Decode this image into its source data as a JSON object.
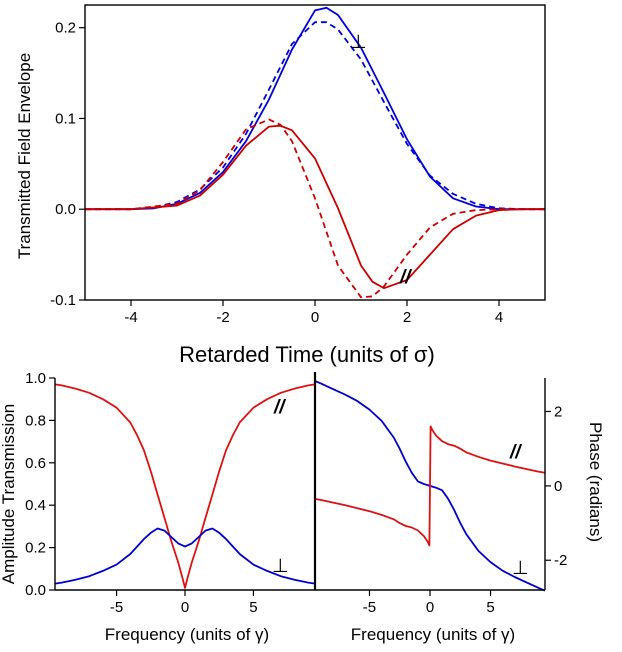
{
  "chart_data": [
    {
      "id": "top",
      "type": "line",
      "xlabel": "Retarded Time (units of σ)",
      "ylabel": "Transmitted Field Envelope",
      "xlim": [
        -5,
        5
      ],
      "ylim": [
        -0.1,
        0.225
      ],
      "xticks": [
        -4,
        -2,
        0,
        2,
        4
      ],
      "yticks": [
        -0.1,
        0.0,
        0.1,
        0.2
      ],
      "ytick_labels": [
        "-0.1",
        "0.0",
        "0.1",
        "0.2"
      ],
      "series": [
        {
          "key": "perp_solid",
          "color": "#0000dd",
          "dash": "none",
          "x": [
            -5,
            -4.5,
            -4,
            -3.5,
            -3,
            -2.5,
            -2,
            -1.5,
            -1,
            -0.5,
            0,
            0.25,
            0.5,
            1,
            1.5,
            2,
            2.5,
            3,
            3.5,
            4,
            4.5,
            5
          ],
          "y": [
            0,
            0,
            0,
            0.001,
            0.006,
            0.018,
            0.041,
            0.075,
            0.121,
            0.176,
            0.219,
            0.222,
            0.214,
            0.178,
            0.128,
            0.077,
            0.036,
            0.012,
            0.003,
            0,
            0,
            0
          ]
        },
        {
          "key": "perp_dashed",
          "color": "#0000dd",
          "dash": "6,4",
          "x": [
            -5,
            -4.5,
            -4,
            -3.5,
            -3,
            -2.5,
            -2,
            -1.5,
            -1,
            -0.5,
            0,
            0.25,
            0.5,
            1,
            1.5,
            2,
            2.5,
            3,
            3.5,
            4,
            4.5,
            5
          ],
          "y": [
            0,
            0,
            0,
            0.002,
            0.008,
            0.022,
            0.046,
            0.083,
            0.132,
            0.182,
            0.206,
            0.206,
            0.198,
            0.165,
            0.118,
            0.072,
            0.037,
            0.017,
            0.006,
            0.001,
            0,
            0
          ]
        },
        {
          "key": "par_solid",
          "color": "#cc0000",
          "dash": "none",
          "x": [
            -5,
            -4,
            -3,
            -2.5,
            -2,
            -1.5,
            -1,
            -0.75,
            -0.5,
            0,
            0.5,
            1,
            1.25,
            1.5,
            2,
            2.5,
            3,
            3.5,
            4,
            4.5,
            5
          ],
          "y": [
            0,
            0,
            0.004,
            0.015,
            0.038,
            0.07,
            0.091,
            0.092,
            0.087,
            0.056,
            0.001,
            -0.062,
            -0.08,
            -0.087,
            -0.078,
            -0.05,
            -0.022,
            -0.007,
            -0.001,
            0,
            0
          ]
        },
        {
          "key": "par_dashed",
          "color": "#cc0000",
          "dash": "6,4",
          "x": [
            -5,
            -4,
            -3,
            -2.5,
            -2,
            -1.5,
            -1,
            -0.75,
            -0.5,
            0,
            0.5,
            1,
            1.25,
            1.5,
            2,
            2.5,
            3,
            3.5,
            4,
            4.5,
            5
          ],
          "y": [
            0,
            0,
            0.006,
            0.021,
            0.052,
            0.088,
            0.099,
            0.093,
            0.075,
            0.012,
            -0.062,
            -0.097,
            -0.096,
            -0.085,
            -0.05,
            -0.02,
            -0.005,
            -0.001,
            0,
            0,
            0
          ]
        }
      ],
      "annotations": {
        "perp": "⊥",
        "parallel": "//"
      }
    },
    {
      "id": "bottom_left",
      "type": "line",
      "xlabel": "Frequency (units of γ)",
      "ylabel": "Amplitude Transmission",
      "xlim": [
        -9.5,
        9.5
      ],
      "ylim": [
        0,
        1.0
      ],
      "xticks": [
        -5,
        0,
        5
      ],
      "yticks": [
        0.0,
        0.2,
        0.4,
        0.6,
        0.8,
        1.0
      ],
      "ytick_labels": [
        "0.0",
        "0.2",
        "0.4",
        "0.6",
        "0.8",
        "1.0"
      ],
      "series": [
        {
          "key": "par_amp",
          "color": "#dd1111",
          "x": [
            -9.5,
            -9,
            -8,
            -7,
            -6,
            -5,
            -4,
            -3.5,
            -3,
            -2.5,
            -2,
            -1.5,
            -1,
            -0.5,
            -0.2,
            0,
            0.2,
            0.5,
            1,
            1.5,
            2,
            2.5,
            3,
            3.5,
            4,
            5,
            6,
            7,
            8,
            9,
            9.5
          ],
          "y": [
            0.97,
            0.965,
            0.95,
            0.93,
            0.9,
            0.86,
            0.79,
            0.73,
            0.66,
            0.56,
            0.45,
            0.34,
            0.23,
            0.13,
            0.06,
            0.01,
            0.06,
            0.13,
            0.23,
            0.34,
            0.45,
            0.56,
            0.66,
            0.73,
            0.79,
            0.86,
            0.9,
            0.93,
            0.95,
            0.965,
            0.97
          ]
        },
        {
          "key": "perp_amp",
          "color": "#0000cc",
          "x": [
            -9.5,
            -9,
            -8,
            -7,
            -6,
            -5,
            -4,
            -3,
            -2.5,
            -2,
            -1.5,
            -1,
            -0.5,
            0,
            0.5,
            1,
            1.5,
            2,
            2.5,
            3,
            4,
            5,
            6,
            7,
            8,
            9,
            9.5
          ],
          "y": [
            0.03,
            0.035,
            0.048,
            0.065,
            0.09,
            0.12,
            0.17,
            0.24,
            0.27,
            0.29,
            0.28,
            0.25,
            0.22,
            0.205,
            0.22,
            0.25,
            0.28,
            0.29,
            0.27,
            0.24,
            0.17,
            0.12,
            0.09,
            0.065,
            0.048,
            0.035,
            0.03
          ]
        }
      ],
      "annotations": {
        "parallel": "//",
        "perp": "⊥"
      }
    },
    {
      "id": "bottom_right",
      "type": "line",
      "xlabel": "Frequency (units of γ)",
      "ylabel": "Phase (radians)",
      "xlim": [
        -9.5,
        9.5
      ],
      "ylim": [
        -2.8,
        2.9
      ],
      "xticks": [
        -5,
        0,
        5
      ],
      "yticks": [
        -2,
        0,
        2
      ],
      "ytick_labels": [
        "-2",
        "0",
        "2"
      ],
      "series": [
        {
          "key": "perp_phase",
          "color": "#0000cc",
          "x": [
            -9.5,
            -9,
            -8,
            -7,
            -6,
            -5,
            -4,
            -3,
            -2.5,
            -2,
            -1.5,
            -1,
            -0.5,
            0,
            0.5,
            1,
            1.5,
            2,
            2.5,
            3,
            4,
            5,
            6,
            7,
            8,
            9,
            9.5
          ],
          "y": [
            2.82,
            2.75,
            2.6,
            2.45,
            2.28,
            2.05,
            1.75,
            1.3,
            1.0,
            0.65,
            0.35,
            0.12,
            0.05,
            0.0,
            -0.05,
            -0.12,
            -0.35,
            -0.65,
            -1.0,
            -1.3,
            -1.75,
            -2.05,
            -2.28,
            -2.45,
            -2.6,
            -2.75,
            -2.82
          ]
        },
        {
          "key": "par_phase",
          "color": "#dd1111",
          "x": [
            -9.5,
            -9,
            -8,
            -7,
            -6,
            -5,
            -4,
            -3,
            -2.5,
            -2,
            -1.5,
            -1,
            -0.5,
            -0.2,
            -0.05,
            0.05,
            0.2,
            0.5,
            1,
            1.5,
            2,
            2.5,
            3,
            4,
            5,
            6,
            7,
            8,
            9,
            9.5
          ],
          "y": [
            -0.35,
            -0.38,
            -0.45,
            -0.52,
            -0.6,
            -0.68,
            -0.78,
            -0.9,
            -1.0,
            -1.08,
            -1.12,
            -1.2,
            -1.35,
            -1.5,
            -1.6,
            1.6,
            1.5,
            1.35,
            1.2,
            1.12,
            1.08,
            1.0,
            0.9,
            0.78,
            0.68,
            0.6,
            0.52,
            0.45,
            0.38,
            0.35
          ]
        }
      ],
      "annotations": {
        "parallel": "//",
        "perp": "⊥"
      }
    }
  ]
}
